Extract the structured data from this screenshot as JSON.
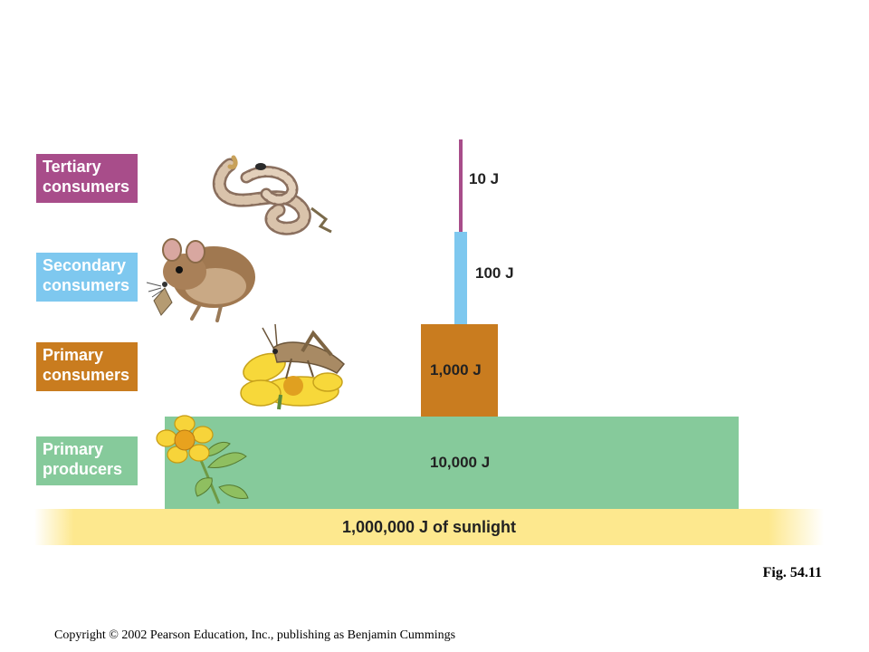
{
  "levels": [
    {
      "label": "Tertiary consumers",
      "color": "#a84d8a",
      "energy": "10 J"
    },
    {
      "label": "Secondary consumers",
      "color": "#7ec8ef",
      "energy": "100 J"
    },
    {
      "label": "Primary consumers",
      "color": "#c97c1f",
      "energy": "1,000 J"
    },
    {
      "label": "Primary producers",
      "color": "#86ca9b",
      "energy": "10,000 J"
    }
  ],
  "sunlight": {
    "label": "1,000,000 J of sunlight",
    "color": "#fde88e"
  },
  "figure_label": "Fig. 54.11",
  "copyright": "Copyright © 2002 Pearson Education, Inc., publishing as Benjamin Cummings",
  "illustrations": [
    "snake",
    "mouse",
    "grasshopper-on-flower",
    "flowering-plant"
  ]
}
